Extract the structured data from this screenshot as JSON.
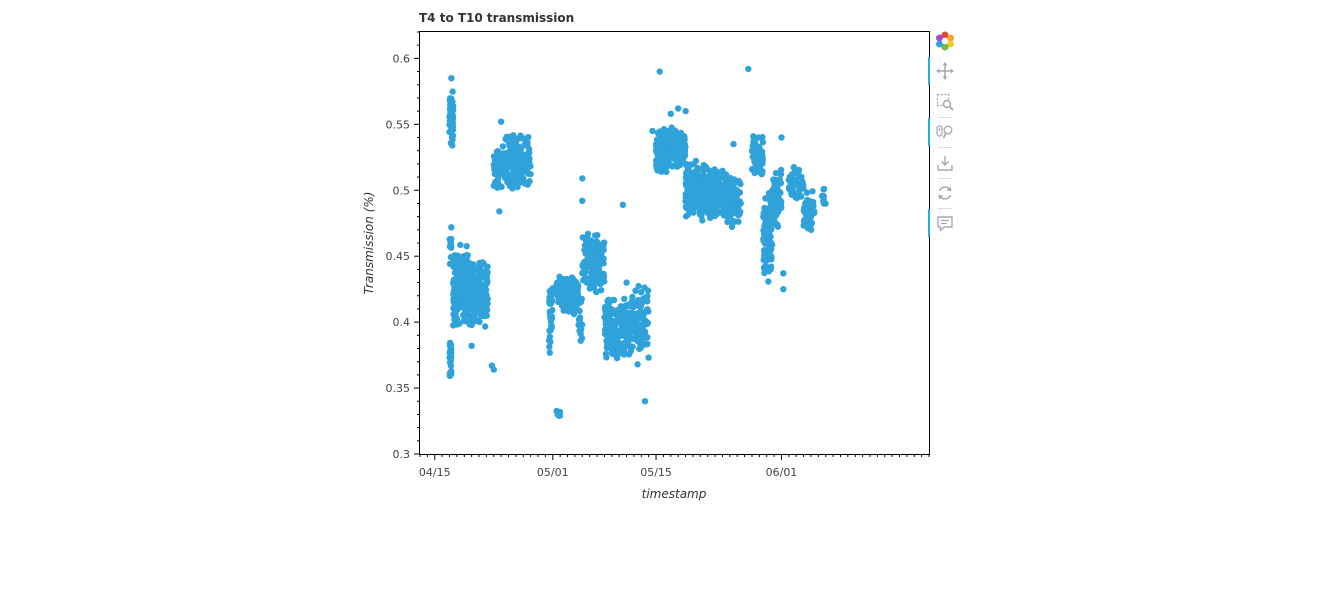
{
  "colors": {
    "series": "#30a2da",
    "axis": "#000000",
    "text": "#444444",
    "toolbar_icon": "#a9a9a9",
    "active": "#26aae1"
  },
  "toolbar": {
    "tools": [
      {
        "name": "bokeh-logo-icon",
        "interactable": true
      },
      {
        "name": "pan-tool-icon",
        "interactable": true,
        "active": true
      },
      {
        "name": "box-zoom-tool-icon",
        "interactable": true
      },
      {
        "name": "wheel-zoom-tool-icon",
        "interactable": true,
        "active": true
      },
      {
        "name": "save-tool-icon",
        "interactable": true
      },
      {
        "name": "reset-tool-icon",
        "interactable": true
      },
      {
        "name": "hover-tool-icon",
        "interactable": true,
        "active": true
      }
    ]
  },
  "chart_data": {
    "type": "scatter",
    "title": "T4 to T10 transmission",
    "xlabel": "timestamp",
    "ylabel": "Transmission (%)",
    "x_type": "datetime",
    "xlim": [
      "2024-04-13",
      "2024-06-21"
    ],
    "ylim": [
      0.3,
      0.62
    ],
    "x_ticks": [
      {
        "label": "04/15",
        "value": "2024-04-15"
      },
      {
        "label": "05/01",
        "value": "2024-05-01"
      },
      {
        "label": "05/15",
        "value": "2024-05-15"
      },
      {
        "label": "06/01",
        "value": "2024-06-01"
      }
    ],
    "y_ticks": [
      0.3,
      0.35,
      0.4,
      0.45,
      0.5,
      0.55,
      0.6
    ],
    "grid": false,
    "series": [
      {
        "clusters": [
          {
            "x_start": "2024-04-17T00:00",
            "x_end": "2024-04-17T12:00",
            "y_min": 0.53,
            "y_max": 0.58,
            "n": 70
          },
          {
            "x_start": "2024-04-17T00:00",
            "x_end": "2024-04-17T06:00",
            "y_min": 0.355,
            "y_max": 0.39,
            "n": 25
          },
          {
            "x_start": "2024-04-17T00:00",
            "x_end": "2024-04-17T06:00",
            "y_min": 0.44,
            "y_max": 0.48,
            "n": 10
          },
          {
            "x_start": "2024-04-17T12:00",
            "x_end": "2024-04-19T12:00",
            "y_min": 0.395,
            "y_max": 0.46,
            "n": 170
          },
          {
            "x_start": "2024-04-19T12:00",
            "x_end": "2024-04-22T06:00",
            "y_min": 0.395,
            "y_max": 0.45,
            "n": 170
          },
          {
            "x_start": "2024-04-23T00:00",
            "x_end": "2024-04-24T12:00",
            "y_min": 0.5,
            "y_max": 0.535,
            "n": 70
          },
          {
            "x_start": "2024-04-24T12:00",
            "x_end": "2024-04-26T12:00",
            "y_min": 0.5,
            "y_max": 0.545,
            "n": 110
          },
          {
            "x_start": "2024-04-26T12:00",
            "x_end": "2024-04-28T00:00",
            "y_min": 0.5,
            "y_max": 0.545,
            "n": 70
          },
          {
            "x_start": "2024-04-30T12:00",
            "x_end": "2024-05-01T00:00",
            "y_min": 0.375,
            "y_max": 0.43,
            "n": 35
          },
          {
            "x_start": "2024-05-01T12:00",
            "x_end": "2024-05-02T00:00",
            "y_min": 0.325,
            "y_max": 0.335,
            "n": 6
          },
          {
            "x_start": "2024-05-01T12:00",
            "x_end": "2024-05-04T12:00",
            "y_min": 0.405,
            "y_max": 0.435,
            "n": 150
          },
          {
            "x_start": "2024-05-04T12:00",
            "x_end": "2024-05-05T00:00",
            "y_min": 0.38,
            "y_max": 0.42,
            "n": 20
          },
          {
            "x_start": "2024-05-05T00:00",
            "x_end": "2024-05-08T00:00",
            "y_min": 0.42,
            "y_max": 0.47,
            "n": 150
          },
          {
            "x_start": "2024-05-08T00:00",
            "x_end": "2024-05-10T12:00",
            "y_min": 0.37,
            "y_max": 0.42,
            "n": 150
          },
          {
            "x_start": "2024-05-10T12:00",
            "x_end": "2024-05-14T00:00",
            "y_min": 0.37,
            "y_max": 0.43,
            "n": 130
          },
          {
            "x_start": "2024-05-15T00:00",
            "x_end": "2024-05-16T12:00",
            "y_min": 0.51,
            "y_max": 0.55,
            "n": 100
          },
          {
            "x_start": "2024-05-16T12:00",
            "x_end": "2024-05-19T00:00",
            "y_min": 0.515,
            "y_max": 0.55,
            "n": 130
          },
          {
            "x_start": "2024-05-19T00:00",
            "x_end": "2024-05-21T12:00",
            "y_min": 0.475,
            "y_max": 0.525,
            "n": 170
          },
          {
            "x_start": "2024-05-21T12:00",
            "x_end": "2024-05-24T12:00",
            "y_min": 0.475,
            "y_max": 0.52,
            "n": 160
          },
          {
            "x_start": "2024-05-24T12:00",
            "x_end": "2024-05-26T12:00",
            "y_min": 0.47,
            "y_max": 0.51,
            "n": 90
          },
          {
            "x_start": "2024-05-28T00:00",
            "x_end": "2024-05-29T12:00",
            "y_min": 0.51,
            "y_max": 0.545,
            "n": 60
          },
          {
            "x_start": "2024-05-29T12:00",
            "x_end": "2024-05-30T18:00",
            "y_min": 0.43,
            "y_max": 0.5,
            "n": 110
          },
          {
            "x_start": "2024-05-30T18:00",
            "x_end": "2024-06-01T00:00",
            "y_min": 0.47,
            "y_max": 0.52,
            "n": 80
          },
          {
            "x_start": "2024-06-02T00:00",
            "x_end": "2024-06-04T00:00",
            "y_min": 0.49,
            "y_max": 0.52,
            "n": 50
          },
          {
            "x_start": "2024-06-04T00:00",
            "x_end": "2024-06-05T12:00",
            "y_min": 0.465,
            "y_max": 0.5,
            "n": 50
          },
          {
            "x_start": "2024-06-06T12:00",
            "x_end": "2024-06-07T00:00",
            "y_min": 0.485,
            "y_max": 0.505,
            "n": 8
          }
        ],
        "points": [
          {
            "x": "2024-05-15T12:00",
            "y": 0.59
          },
          {
            "x": "2024-05-27T12:00",
            "y": 0.592
          },
          {
            "x": "2024-05-05T00:00",
            "y": 0.509
          },
          {
            "x": "2024-05-05T00:00",
            "y": 0.492
          },
          {
            "x": "2024-05-10T12:00",
            "y": 0.489
          },
          {
            "x": "2024-05-13T12:00",
            "y": 0.34
          },
          {
            "x": "2024-05-14T12:00",
            "y": 0.545
          },
          {
            "x": "2024-05-18T00:00",
            "y": 0.562
          },
          {
            "x": "2024-05-17T00:00",
            "y": 0.558
          },
          {
            "x": "2024-05-19T00:00",
            "y": 0.56
          },
          {
            "x": "2024-05-25T12:00",
            "y": 0.535
          },
          {
            "x": "2024-06-01T00:00",
            "y": 0.54
          },
          {
            "x": "2024-06-01T06:00",
            "y": 0.437
          },
          {
            "x": "2024-06-01T06:00",
            "y": 0.425
          },
          {
            "x": "2024-04-20T00:00",
            "y": 0.382
          },
          {
            "x": "2024-04-22T18:00",
            "y": 0.367
          },
          {
            "x": "2024-04-23T00:00",
            "y": 0.364
          },
          {
            "x": "2024-04-23T18:00",
            "y": 0.484
          },
          {
            "x": "2024-04-24T00:00",
            "y": 0.552
          },
          {
            "x": "2024-05-11T00:00",
            "y": 0.43
          },
          {
            "x": "2024-05-12T12:00",
            "y": 0.368
          },
          {
            "x": "2024-04-17T06:00",
            "y": 0.585
          }
        ]
      }
    ]
  }
}
